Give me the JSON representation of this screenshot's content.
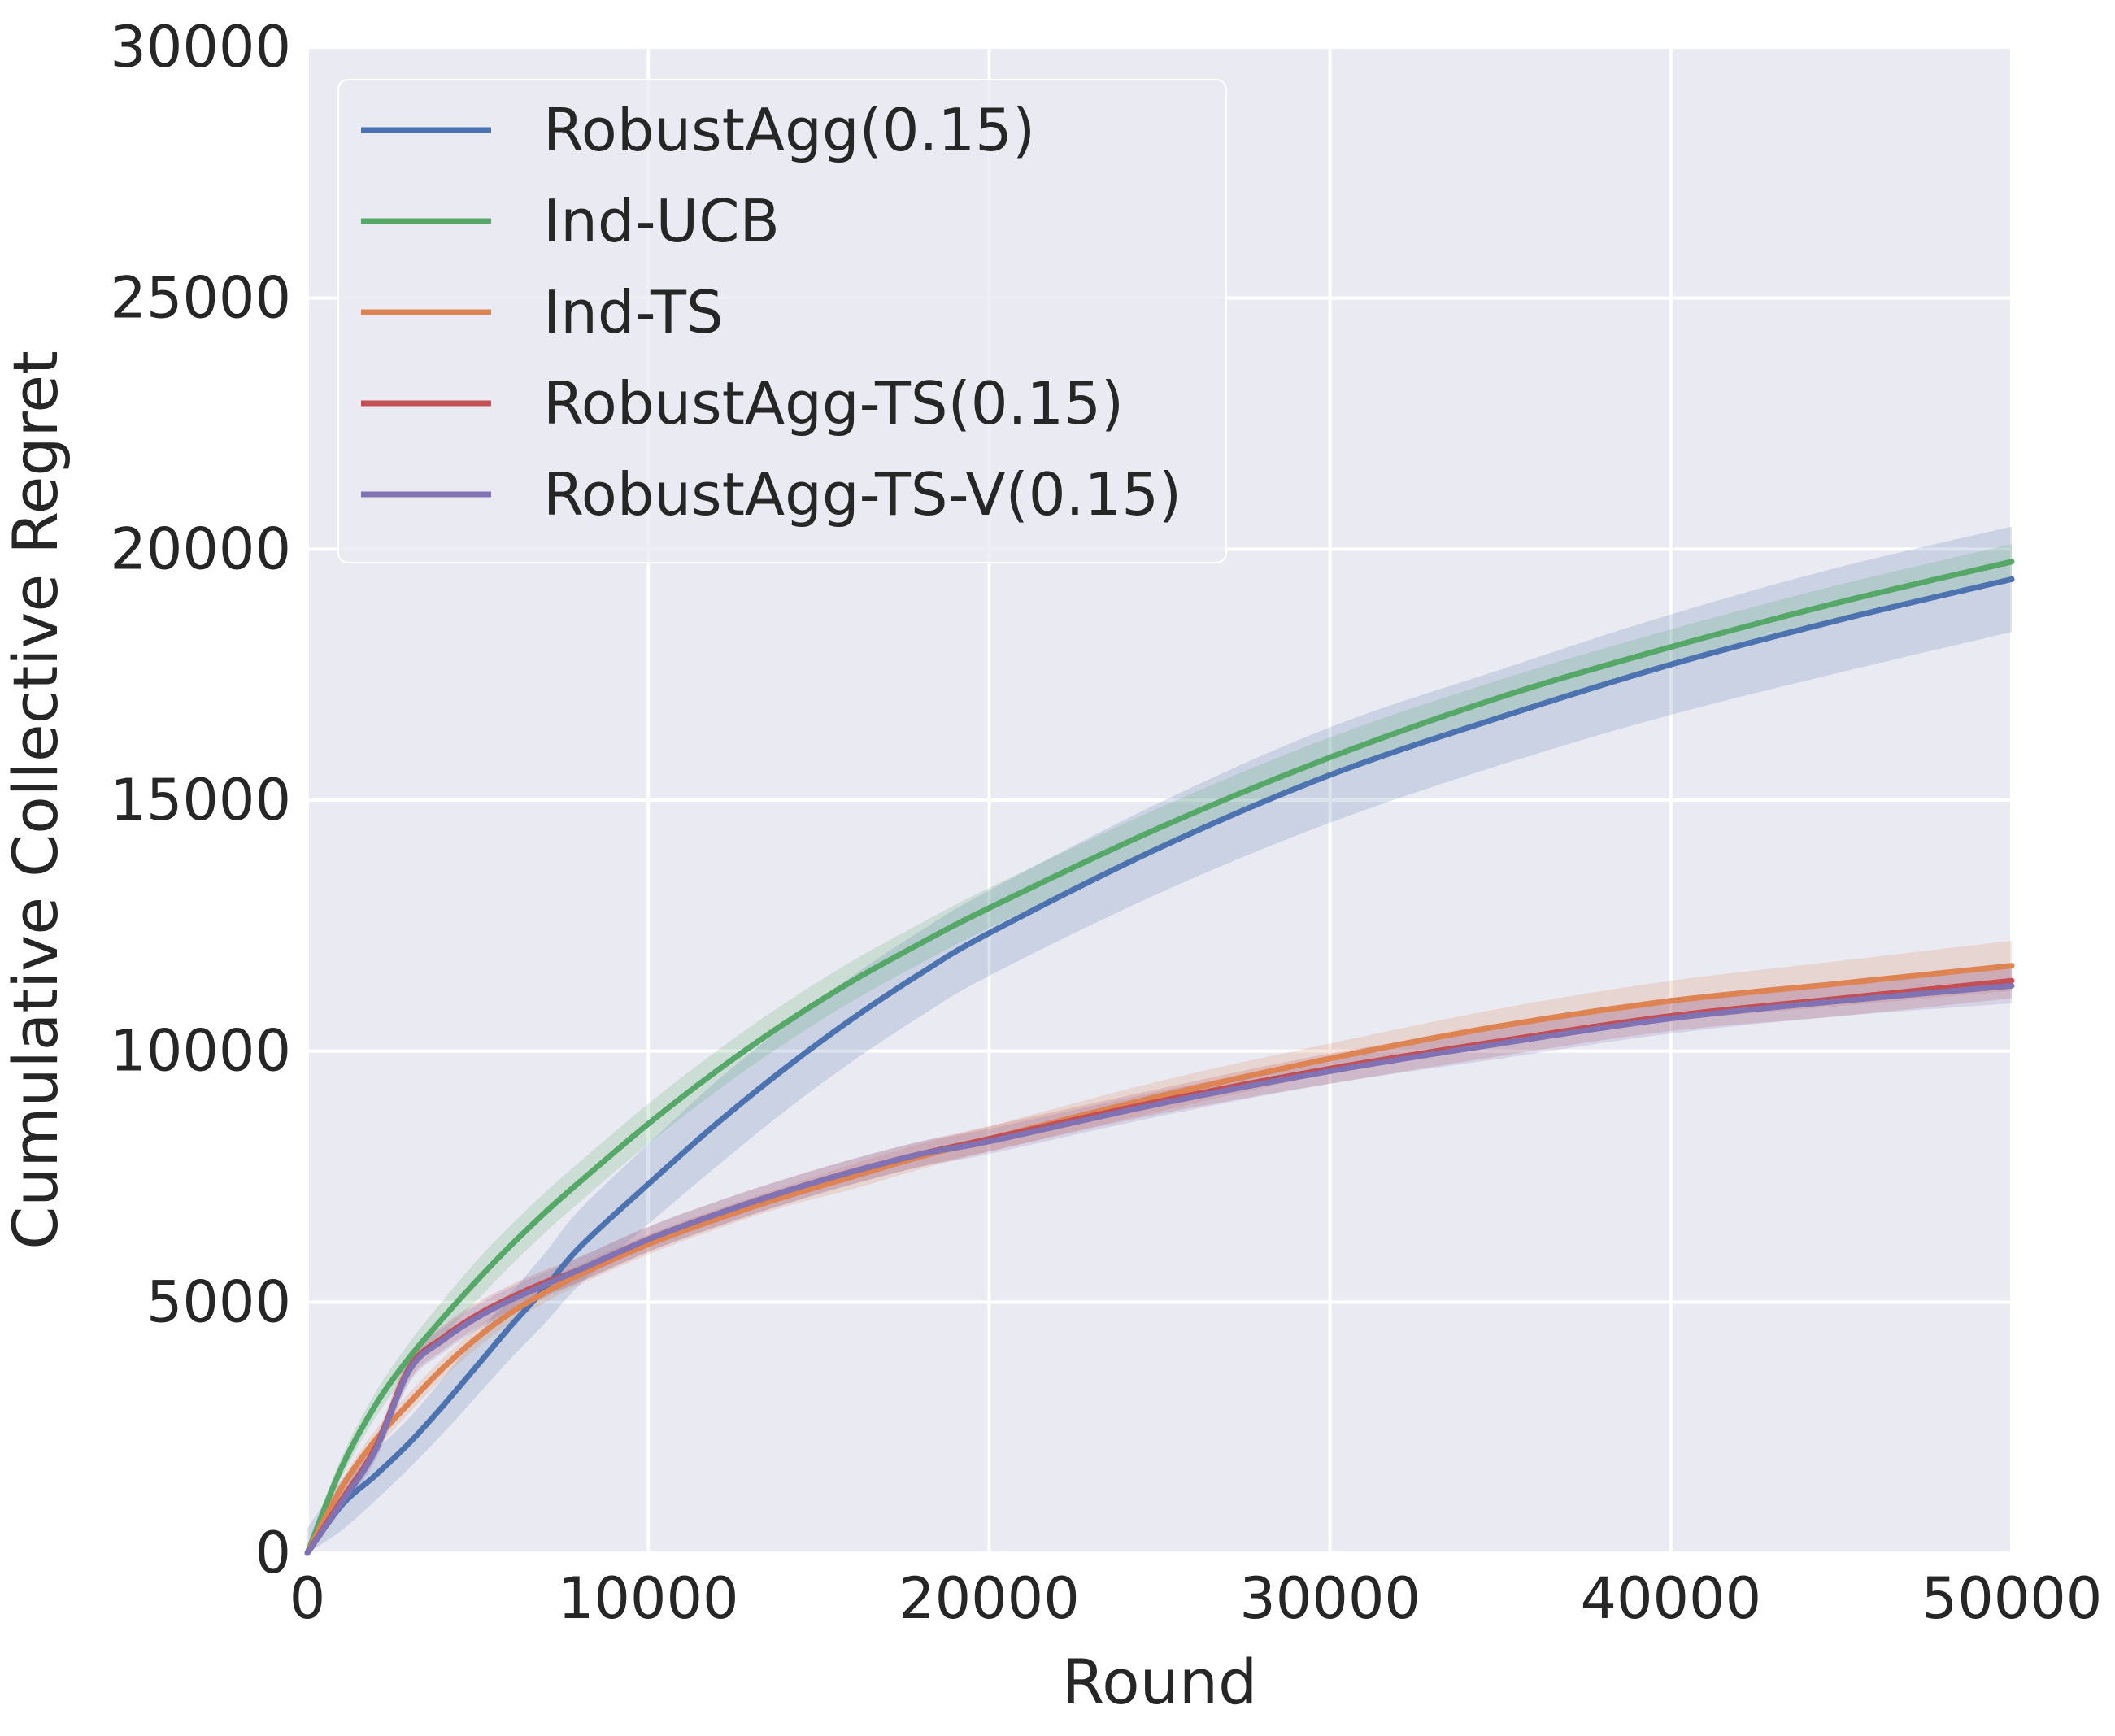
{
  "chart_data": {
    "type": "line",
    "title": "",
    "xlabel": "Round",
    "ylabel": "Cumulative Collective Regret",
    "xlim": [
      0,
      50000
    ],
    "ylim": [
      0,
      30000
    ],
    "xticks": [
      0,
      10000,
      20000,
      30000,
      40000,
      50000
    ],
    "yticks": [
      0,
      5000,
      10000,
      15000,
      20000,
      25000,
      30000
    ],
    "grid": true,
    "background": "#EAEAF2",
    "legend": {
      "position": "top-left"
    },
    "x": [
      0,
      1000,
      2000,
      3000,
      4000,
      5000,
      6000,
      7000,
      8000,
      10000,
      12000,
      14000,
      16000,
      18000,
      20000,
      25000,
      30000,
      35000,
      40000,
      45000,
      50000
    ],
    "series": [
      {
        "name": "RobustAgg(0.15)",
        "color": "#4C72B0",
        "values": [
          0,
          950,
          1550,
          2200,
          2950,
          3750,
          4550,
          5300,
          6100,
          7350,
          8550,
          9650,
          10650,
          11550,
          12350,
          14050,
          15500,
          16650,
          17700,
          18600,
          19400
        ],
        "band": [
          500,
          500,
          500,
          500,
          550,
          600,
          650,
          700,
          750,
          800,
          850,
          850,
          850,
          850,
          850,
          900,
          950,
          950,
          1000,
          1050,
          1050
        ]
      },
      {
        "name": "Ind-UCB",
        "color": "#55A868",
        "values": [
          0,
          1700,
          2950,
          3900,
          4700,
          5450,
          6150,
          6800,
          7400,
          8550,
          9600,
          10550,
          11400,
          12150,
          12850,
          14450,
          15850,
          17050,
          18050,
          18950,
          19750
        ],
        "band": [
          150,
          200,
          250,
          300,
          350,
          400,
          400,
          400,
          400,
          400,
          400,
          400,
          400,
          400,
          400,
          400,
          400,
          350,
          350,
          350,
          350
        ]
      },
      {
        "name": "Ind-TS",
        "color": "#DD8452",
        "values": [
          0,
          1300,
          2250,
          3000,
          3700,
          4300,
          4800,
          5200,
          5550,
          6150,
          6650,
          7100,
          7500,
          7900,
          8250,
          9100,
          9850,
          10500,
          11000,
          11350,
          11700
        ],
        "band": [
          100,
          150,
          200,
          200,
          200,
          200,
          200,
          200,
          200,
          200,
          200,
          200,
          250,
          250,
          250,
          300,
          300,
          350,
          400,
          450,
          500
        ]
      },
      {
        "name": "RobustAgg-TS(0.15)",
        "color": "#C44E52",
        "values": [
          0,
          1050,
          2100,
          3700,
          4300,
          4750,
          5100,
          5400,
          5650,
          6250,
          6750,
          7200,
          7600,
          7950,
          8250,
          9000,
          9650,
          10200,
          10700,
          11050,
          11400
        ],
        "band": [
          100,
          150,
          200,
          250,
          250,
          250,
          250,
          250,
          250,
          250,
          250,
          250,
          250,
          250,
          250,
          250,
          300,
          300,
          300,
          350,
          350
        ]
      },
      {
        "name": "RobustAgg-TS-V(0.15)",
        "color": "#8172B3",
        "values": [
          0,
          1000,
          2050,
          3650,
          4250,
          4700,
          5050,
          5350,
          5650,
          6250,
          6750,
          7200,
          7600,
          7950,
          8200,
          8950,
          9600,
          10150,
          10650,
          11000,
          11300
        ],
        "band": [
          100,
          150,
          200,
          250,
          250,
          250,
          250,
          250,
          250,
          250,
          250,
          250,
          250,
          250,
          250,
          250,
          250,
          300,
          300,
          300,
          350
        ]
      }
    ]
  }
}
